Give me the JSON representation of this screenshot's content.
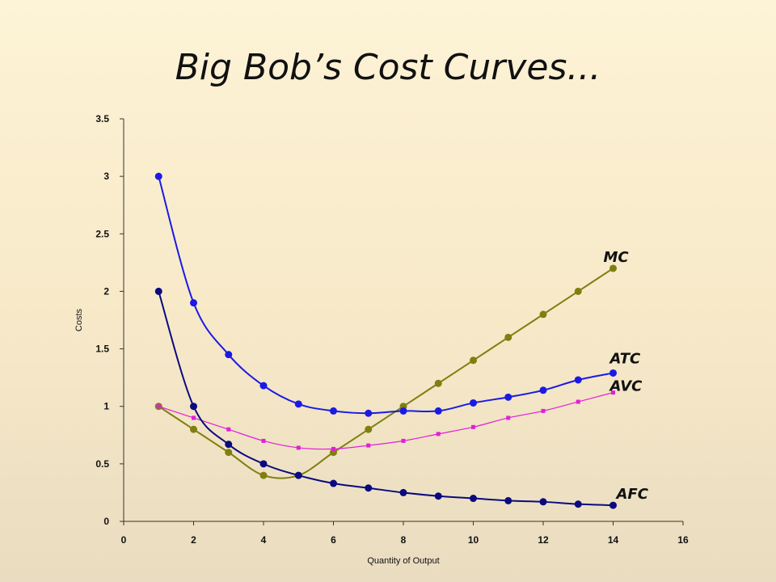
{
  "slide": {
    "title": "Big Bob’s Cost Curves..."
  },
  "chart_data": {
    "type": "line",
    "title": "Big Bob’s Cost Curves...",
    "xlabel": "Quantity of Output",
    "ylabel": "Costs",
    "xlim": [
      0,
      16
    ],
    "ylim": [
      0,
      3.5
    ],
    "xticks": [
      "0",
      "2",
      "4",
      "6",
      "8",
      "10",
      "12",
      "14",
      "16"
    ],
    "yticks": [
      "0",
      "0.5",
      "1",
      "1.5",
      "2",
      "2.5",
      "3",
      "3.5"
    ],
    "grid": false,
    "series": [
      {
        "name": "MC",
        "color": "#7f7f10",
        "marker": "circle",
        "x": [
          1,
          2,
          3,
          4,
          5,
          6,
          7,
          8,
          9,
          10,
          11,
          12,
          13,
          14
        ],
        "y": [
          1.0,
          0.8,
          0.6,
          0.4,
          0.4,
          0.6,
          0.8,
          1.0,
          1.2,
          1.4,
          1.6,
          1.8,
          2.0,
          2.2
        ]
      },
      {
        "name": "ATC",
        "color": "#1a1ae6",
        "marker": "circle",
        "x": [
          1,
          2,
          3,
          4,
          5,
          6,
          7,
          8,
          9,
          10,
          11,
          12,
          13,
          14
        ],
        "y": [
          3.0,
          1.9,
          1.45,
          1.18,
          1.02,
          0.96,
          0.94,
          0.96,
          0.96,
          1.03,
          1.08,
          1.14,
          1.23,
          1.29
        ]
      },
      {
        "name": "AVC",
        "color": "#e020d8",
        "marker": "square",
        "x": [
          1,
          2,
          3,
          4,
          5,
          6,
          7,
          8,
          9,
          10,
          11,
          12,
          13,
          14
        ],
        "y": [
          1.0,
          0.9,
          0.8,
          0.7,
          0.64,
          0.63,
          0.66,
          0.7,
          0.76,
          0.82,
          0.9,
          0.96,
          1.04,
          1.12
        ]
      },
      {
        "name": "AFC",
        "color": "#0a0a80",
        "marker": "circle",
        "x": [
          1,
          2,
          3,
          4,
          5,
          6,
          7,
          8,
          9,
          10,
          11,
          12,
          13,
          14
        ],
        "y": [
          2.0,
          1.0,
          0.67,
          0.5,
          0.4,
          0.33,
          0.29,
          0.25,
          0.22,
          0.2,
          0.18,
          0.17,
          0.15,
          0.14
        ]
      }
    ]
  }
}
